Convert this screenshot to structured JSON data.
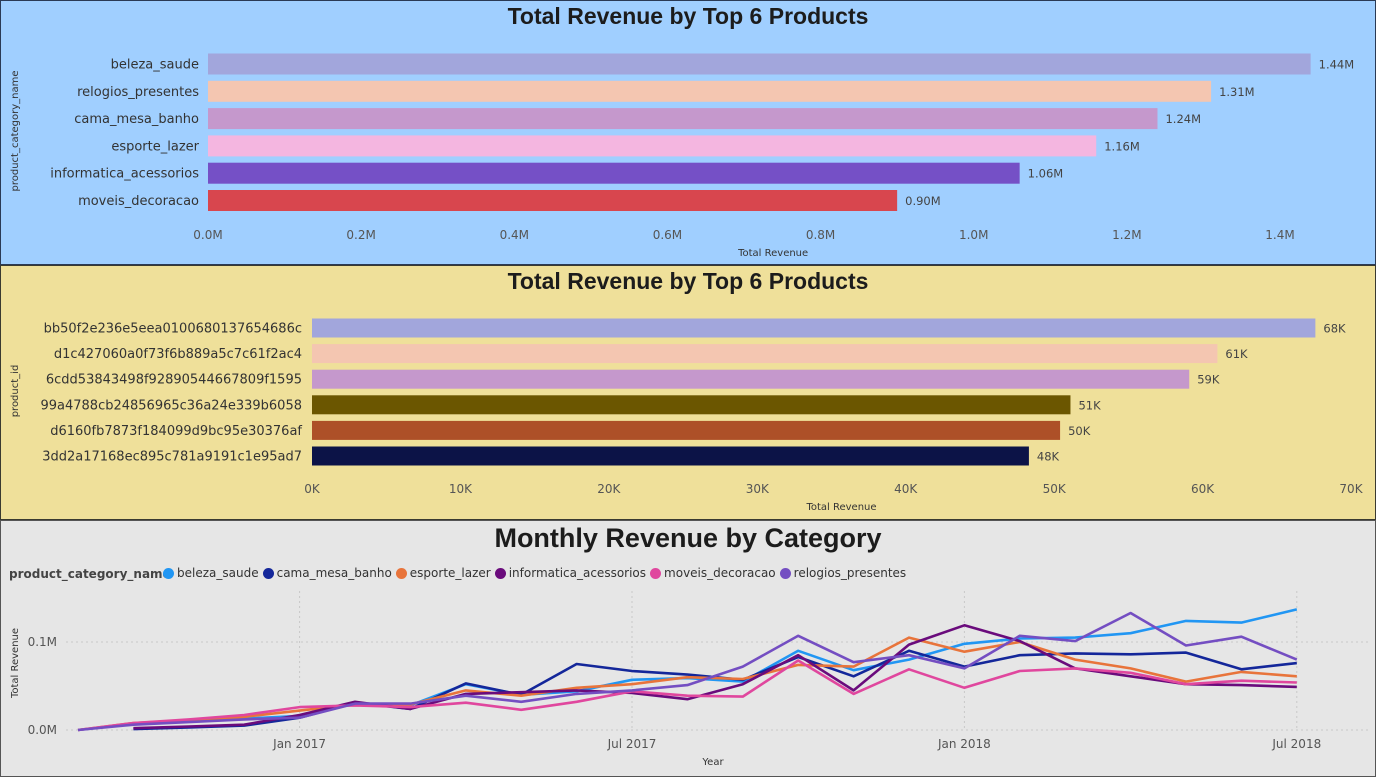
{
  "charts": [
    {
      "title": "Total Revenue by Top 6 Products",
      "xlabel": "Total Revenue",
      "ylabel": "product_category_name",
      "xticks": [
        "0.0M",
        "0.2M",
        "0.4M",
        "0.6M",
        "0.8M",
        "1.0M",
        "1.2M",
        "1.4M"
      ]
    },
    {
      "title": "Total Revenue by Top 6 Products",
      "xlabel": "Total Revenue",
      "ylabel": "product_id",
      "xticks": [
        "0K",
        "10K",
        "20K",
        "30K",
        "40K",
        "50K",
        "60K",
        "70K"
      ]
    },
    {
      "title": "Monthly Revenue by Category",
      "xlabel": "Year",
      "ylabel": "Total Revenue",
      "legend_title": "product_category_name",
      "yticks": [
        "0.0M",
        "0.1M"
      ],
      "xticks": [
        "Jan 2017",
        "Jul 2017",
        "Jan 2018",
        "Jul 2018"
      ]
    }
  ],
  "chart_data": [
    {
      "type": "bar",
      "orientation": "horizontal",
      "title": "Total Revenue by Top 6 Products",
      "xlabel": "Total Revenue",
      "ylabel": "product_category_name",
      "xlim": [
        0,
        1.45
      ],
      "categories": [
        "beleza_saude",
        "relogios_presentes",
        "cama_mesa_banho",
        "esporte_lazer",
        "informatica_acessorios",
        "moveis_decoracao"
      ],
      "values": [
        1.44,
        1.31,
        1.24,
        1.16,
        1.06,
        0.9
      ],
      "value_labels": [
        "1.44M",
        "1.31M",
        "1.24M",
        "1.16M",
        "1.06M",
        "0.90M"
      ],
      "colors": [
        "#a2a6dc",
        "#f4c6b1",
        "#c598cc",
        "#f4b6e0",
        "#7550c6",
        "#d8464e"
      ]
    },
    {
      "type": "bar",
      "orientation": "horizontal",
      "title": "Total Revenue by Top 6 Products",
      "xlabel": "Total Revenue",
      "ylabel": "product_id",
      "xlim": [
        0,
        70
      ],
      "categories": [
        "bb50f2e236e5eea0100680137654686c",
        "d1c427060a0f73f6b889a5c7c61f2ac4",
        "6cdd53843498f92890544667809f1595",
        "99a4788cb24856965c36a24e339b6058",
        "d6160fb7873f184099d9bc95e30376af",
        "3dd2a17168ec895c781a9191c1e95ad7"
      ],
      "values": [
        67.6,
        61.0,
        59.1,
        51.1,
        50.4,
        48.3
      ],
      "value_labels": [
        "68K",
        "61K",
        "59K",
        "51K",
        "50K",
        "48K"
      ],
      "colors": [
        "#a2a6dc",
        "#f4c6b1",
        "#c598cc",
        "#6b5600",
        "#ad5028",
        "#0c1347"
      ]
    },
    {
      "type": "line",
      "title": "Monthly Revenue by Category",
      "xlabel": "Year",
      "ylabel": "Total Revenue",
      "ylim": [
        0,
        0.14
      ],
      "x": [
        "2016-09",
        "2016-10",
        "2016-11",
        "2016-12",
        "2017-01",
        "2017-02",
        "2017-03",
        "2017-04",
        "2017-05",
        "2017-06",
        "2017-07",
        "2017-08",
        "2017-09",
        "2017-10",
        "2017-11",
        "2017-12",
        "2018-01",
        "2018-02",
        "2018-03",
        "2018-04",
        "2018-05",
        "2018-06",
        "2018-07",
        "2018-08"
      ],
      "series": [
        {
          "name": "beleza_saude",
          "color": "#2196f3",
          "values": [
            0.0,
            0.007,
            0.01,
            0.013,
            0.016,
            0.03,
            0.028,
            0.052,
            0.04,
            0.044,
            0.057,
            0.059,
            0.055,
            0.09,
            0.068,
            0.08,
            0.098,
            0.104,
            0.105,
            0.11,
            0.124,
            0.122,
            0.137,
            null
          ]
        },
        {
          "name": "cama_mesa_banho",
          "color": "#14279a",
          "values": [
            null,
            0.001,
            0.003,
            0.005,
            0.014,
            0.031,
            0.024,
            0.053,
            0.04,
            0.075,
            0.067,
            0.063,
            0.057,
            0.083,
            0.061,
            0.09,
            0.072,
            0.085,
            0.087,
            0.086,
            0.088,
            0.069,
            0.076,
            null
          ]
        },
        {
          "name": "esporte_lazer",
          "color": "#e8743b",
          "values": [
            0.0,
            0.008,
            0.011,
            0.015,
            0.022,
            0.029,
            0.029,
            0.045,
            0.039,
            0.048,
            0.052,
            0.06,
            0.058,
            0.074,
            0.072,
            0.105,
            0.089,
            0.1,
            0.08,
            0.07,
            0.055,
            0.066,
            0.061,
            null
          ]
        },
        {
          "name": "informatica_acessorios",
          "color": "#6a0b7c",
          "values": [
            null,
            0.002,
            0.004,
            0.006,
            0.017,
            0.032,
            0.024,
            0.041,
            0.043,
            0.045,
            0.042,
            0.035,
            0.052,
            0.085,
            0.045,
            0.097,
            0.119,
            0.101,
            0.07,
            0.061,
            0.052,
            0.051,
            0.049,
            null
          ]
        },
        {
          "name": "moveis_decoracao",
          "color": "#e0479e",
          "values": [
            0.0,
            0.008,
            0.012,
            0.017,
            0.026,
            0.028,
            0.026,
            0.031,
            0.023,
            0.032,
            0.044,
            0.039,
            0.038,
            0.079,
            0.041,
            0.069,
            0.048,
            0.067,
            0.07,
            0.065,
            0.052,
            0.056,
            0.054,
            null
          ]
        },
        {
          "name": "relogios_presentes",
          "color": "#744ec2",
          "values": [
            0.0,
            0.006,
            0.009,
            0.012,
            0.014,
            0.03,
            0.03,
            0.039,
            0.032,
            0.041,
            0.045,
            0.051,
            0.072,
            0.107,
            0.077,
            0.085,
            0.07,
            0.107,
            0.101,
            0.133,
            0.096,
            0.106,
            0.08,
            null
          ]
        }
      ],
      "legend_position": "top-left"
    }
  ]
}
